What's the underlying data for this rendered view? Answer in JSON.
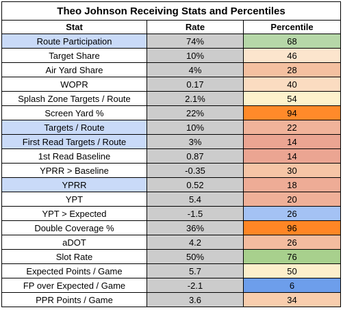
{
  "title": "Theo Johnson Receiving Stats and Percentiles",
  "headers": [
    "Stat",
    "Rate",
    "Percentile"
  ],
  "colors": {
    "stat_default": "#ffffff",
    "stat_highlight": "#c9daf8",
    "rate_fill": "#cccccc"
  },
  "rows": [
    {
      "stat": "Route Participation",
      "rate": "74%",
      "percentile": "68",
      "highlight": true,
      "pct_color": "#b6d7a8"
    },
    {
      "stat": "Target Share",
      "rate": "10%",
      "percentile": "46",
      "highlight": false,
      "pct_color": "#fce5cd"
    },
    {
      "stat": "Air Yard Share",
      "rate": "4%",
      "percentile": "28",
      "highlight": false,
      "pct_color": "#f4c0a0"
    },
    {
      "stat": "WOPR",
      "rate": "0.17",
      "percentile": "40",
      "highlight": false,
      "pct_color": "#fbdcc1"
    },
    {
      "stat": "Splash Zone Targets / Route",
      "rate": "2.1%",
      "percentile": "54",
      "highlight": false,
      "pct_color": "#fdf2cc"
    },
    {
      "stat": "Screen Yard %",
      "rate": "22%",
      "percentile": "94",
      "highlight": false,
      "pct_color": "#ff8a2a"
    },
    {
      "stat": "Targets / Route",
      "rate": "10%",
      "percentile": "22",
      "highlight": true,
      "pct_color": "#f1b39a"
    },
    {
      "stat": "First Read Targets / Route",
      "rate": "3%",
      "percentile": "14",
      "highlight": true,
      "pct_color": "#eba592"
    },
    {
      "stat": "1st Read Baseline",
      "rate": "0.87",
      "percentile": "14",
      "highlight": false,
      "pct_color": "#eba592"
    },
    {
      "stat": "YPRR > Baseline",
      "rate": "-0.35",
      "percentile": "30",
      "highlight": false,
      "pct_color": "#f6c5a6"
    },
    {
      "stat": "YPRR",
      "rate": "0.52",
      "percentile": "18",
      "highlight": true,
      "pct_color": "#eeac96"
    },
    {
      "stat": "YPT",
      "rate": "5.4",
      "percentile": "20",
      "highlight": false,
      "pct_color": "#efb098"
    },
    {
      "stat": "YPT > Expected",
      "rate": "-1.5",
      "percentile": "26",
      "highlight": false,
      "pct_color": "#a4c2f4"
    },
    {
      "stat": "Double Coverage %",
      "rate": "36%",
      "percentile": "96",
      "highlight": false,
      "pct_color": "#ff8625"
    },
    {
      "stat": "aDOT",
      "rate": "4.2",
      "percentile": "26",
      "highlight": false,
      "pct_color": "#f3bc9f"
    },
    {
      "stat": "Slot Rate",
      "rate": "50%",
      "percentile": "76",
      "highlight": false,
      "pct_color": "#a8d08d"
    },
    {
      "stat": "Expected Points / Game",
      "rate": "5.7",
      "percentile": "50",
      "highlight": false,
      "pct_color": "#fdefcb"
    },
    {
      "stat": "FP over Expected / Game",
      "rate": "-2.1",
      "percentile": "6",
      "highlight": false,
      "pct_color": "#6d9eeb"
    },
    {
      "stat": "PPR Points / Game",
      "rate": "3.6",
      "percentile": "34",
      "highlight": false,
      "pct_color": "#f8cdad"
    }
  ]
}
